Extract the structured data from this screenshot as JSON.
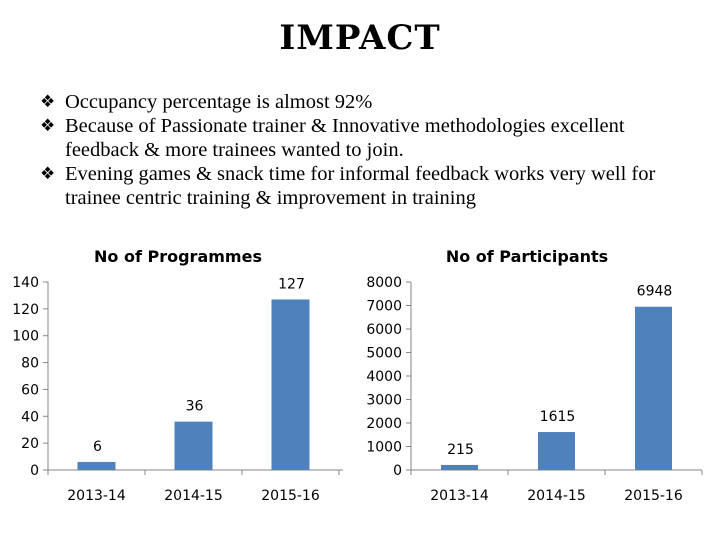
{
  "slide": {
    "title": "IMPACT",
    "bullet_icon": "diamond-bullet-icon",
    "bullets": [
      "Occupancy percentage is almost 92%",
      "Because of Passionate trainer & Innovative methodologies excellent feedback & more trainees wanted to join.",
      "Evening games & snack time for informal feedback works very well for trainee centric training & improvement in training"
    ]
  },
  "colors": {
    "bar": "#4f81bd",
    "axis": "#868686",
    "text": "#000000"
  },
  "chart_data": [
    {
      "type": "bar",
      "title": "No of Programmes",
      "categories": [
        "2013-14",
        "2014-15",
        "2015-16"
      ],
      "values": [
        6,
        36,
        127
      ],
      "data_labels": [
        "6",
        "36",
        "127"
      ],
      "ylim": [
        0,
        140
      ],
      "yticks": [
        "0",
        "20",
        "40",
        "60",
        "80",
        "100",
        "120",
        "140"
      ],
      "xlabel": "",
      "ylabel": "",
      "grid": false,
      "legend": "none"
    },
    {
      "type": "bar",
      "title": "No of Participants",
      "categories": [
        "2013-14",
        "2014-15",
        "2015-16"
      ],
      "values": [
        215,
        1615,
        6948
      ],
      "data_labels": [
        "215",
        "1615",
        "6948"
      ],
      "ylim": [
        0,
        8000
      ],
      "yticks": [
        "0",
        "1000",
        "2000",
        "3000",
        "4000",
        "5000",
        "6000",
        "7000",
        "8000"
      ],
      "xlabel": "",
      "ylabel": "",
      "grid": false,
      "legend": "none"
    }
  ]
}
